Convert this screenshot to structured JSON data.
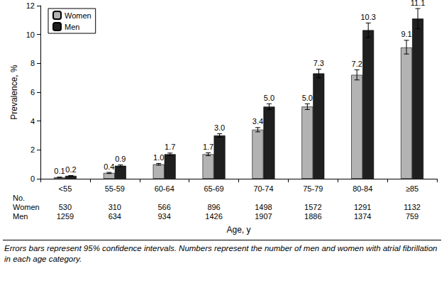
{
  "chart_data": {
    "type": "bar",
    "categories": [
      "<55",
      "55-59",
      "60-64",
      "65-69",
      "70-74",
      "75-79",
      "80-84",
      "≥85"
    ],
    "series": [
      {
        "name": "Women",
        "color": "#b3b3b3",
        "values": [
          0.1,
          0.4,
          1.0,
          1.7,
          3.4,
          5.0,
          7.2,
          9.1
        ],
        "value_labels": [
          "0.1",
          "0.4",
          "1.0",
          "1.7",
          "3.4",
          "5.0",
          "7.2",
          "9.1"
        ],
        "error_low": [
          0.09,
          0.36,
          0.94,
          1.6,
          3.25,
          4.8,
          6.85,
          8.65
        ],
        "error_high": [
          0.11,
          0.44,
          1.06,
          1.8,
          3.55,
          5.2,
          7.55,
          9.6
        ]
      },
      {
        "name": "Men",
        "color": "#1f1f1f",
        "values": [
          0.2,
          0.9,
          1.7,
          3.0,
          5.0,
          7.3,
          10.3,
          11.1
        ],
        "value_labels": [
          "0.2",
          "0.9",
          "1.7",
          "3.0",
          "5.0",
          "7.3",
          "10.3",
          "11.1"
        ],
        "error_low": [
          0.18,
          0.84,
          1.62,
          2.88,
          4.8,
          7.0,
          9.8,
          10.4
        ],
        "error_high": [
          0.22,
          0.96,
          1.78,
          3.12,
          5.2,
          7.6,
          10.8,
          11.8
        ]
      }
    ],
    "xlabel": "Age, y",
    "ylabel": "Prevalence, %",
    "ylim": [
      0,
      12
    ],
    "yticks": [
      0,
      2,
      4,
      6,
      8,
      10,
      12
    ],
    "grid": false,
    "legend": "upper left",
    "data_labels": true,
    "counts": {
      "label": "No.",
      "rows": [
        {
          "name": "Women",
          "values": [
            530,
            310,
            566,
            896,
            1498,
            1572,
            1291,
            1132
          ]
        },
        {
          "name": "Men",
          "values": [
            1259,
            634,
            934,
            1426,
            1907,
            1886,
            1374,
            759
          ]
        }
      ]
    },
    "note": "Errors bars represent 95% confidence intervals. Numbers represent the number of men and women with atrial fibrillation in each age category."
  }
}
